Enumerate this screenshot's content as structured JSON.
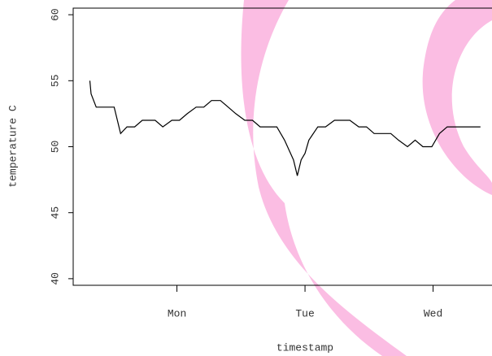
{
  "chart_data": {
    "type": "line",
    "x_label": "timestamp",
    "y_label": "temperature C",
    "x": [
      -0.68,
      -0.67,
      -0.63,
      -0.55,
      -0.49,
      -0.44,
      -0.39,
      -0.33,
      -0.27,
      -0.17,
      -0.11,
      -0.04,
      0.02,
      0.08,
      0.15,
      0.21,
      0.27,
      0.34,
      0.4,
      0.46,
      0.53,
      0.59,
      0.65,
      0.72,
      0.78,
      0.84,
      0.91,
      0.94,
      0.97,
      1.0,
      1.03,
      1.1,
      1.16,
      1.23,
      1.29,
      1.35,
      1.42,
      1.48,
      1.54,
      1.61,
      1.67,
      1.73,
      1.8,
      1.86,
      1.92,
      1.99,
      2.05,
      2.11,
      2.18,
      2.24,
      2.3,
      2.37
    ],
    "y": [
      55,
      54,
      53,
      53,
      53,
      51,
      51.5,
      51.5,
      52,
      52,
      51.5,
      52,
      52,
      52.5,
      53,
      53,
      53.5,
      53.5,
      53,
      52.5,
      52,
      52,
      51.5,
      51.5,
      51.5,
      50.5,
      49,
      47.8,
      49,
      49.5,
      50.5,
      51.5,
      51.5,
      52,
      52,
      52,
      51.5,
      51.5,
      51,
      51,
      51,
      50.5,
      50,
      50.5,
      50,
      50,
      51,
      51.5,
      51.5,
      51.5,
      51.5,
      51.5
    ],
    "color": "#000000",
    "xlim": [
      -0.81,
      2.46
    ],
    "ylim": [
      39.5,
      60.5
    ],
    "xticks": [
      {
        "value": 0,
        "label": "Mon"
      },
      {
        "value": 1,
        "label": "Tue"
      },
      {
        "value": 2,
        "label": "Wed"
      }
    ],
    "yticks": [
      40,
      45,
      50,
      55,
      60
    ]
  }
}
